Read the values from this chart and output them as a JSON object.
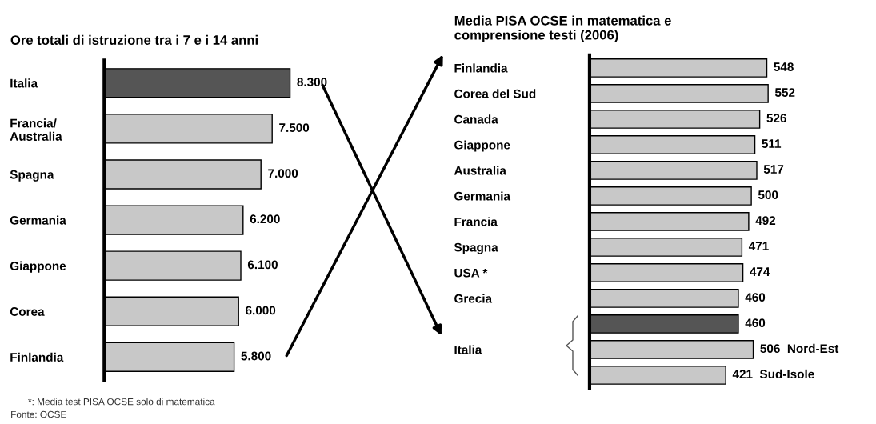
{
  "chart_data": [
    {
      "type": "bar",
      "orientation": "horizontal",
      "title": "Ore totali di istruzione tra i 7 e i 14 anni",
      "categories": [
        "Italia",
        "Francia/\nAustralia",
        "Spagna",
        "Germania",
        "Giappone",
        "Corea",
        "Finlandia"
      ],
      "values": [
        8300,
        7500,
        7000,
        6200,
        6100,
        6000,
        5800
      ],
      "colors": [
        "#555555",
        "#c8c8c8",
        "#c8c8c8",
        "#c8c8c8",
        "#c8c8c8",
        "#c8c8c8",
        "#c8c8c8"
      ],
      "value_labels": [
        "8.300",
        "7.500",
        "7.000",
        "6.200",
        "6.100",
        "6.000",
        "5.800"
      ],
      "tick_labels": "y",
      "grid": false,
      "legend": false,
      "annotations": [
        "*: Media test PISA OCSE solo di matematica",
        "Fonte: OCSE"
      ]
    },
    {
      "type": "bar",
      "orientation": "horizontal",
      "title": "Media PISA OCSE in matematica e\ncomprensione testi (2006)",
      "categories": [
        "Finlandia",
        "Corea del Sud",
        "Canada",
        "Giappone",
        "Australia",
        "Germania",
        "Francia",
        "Spagna",
        "USA *",
        "Grecia",
        null,
        "Italia",
        null
      ],
      "values": [
        548,
        552,
        526,
        511,
        517,
        500,
        492,
        471,
        474,
        460,
        460,
        506,
        421
      ],
      "colors": [
        "#c8c8c8",
        "#c8c8c8",
        "#c8c8c8",
        "#c8c8c8",
        "#c8c8c8",
        "#c8c8c8",
        "#c8c8c8",
        "#c8c8c8",
        "#c8c8c8",
        "#c8c8c8",
        "#555555",
        "#c8c8c8",
        "#c8c8c8"
      ],
      "value_labels": [
        "548",
        "552",
        "526",
        "511",
        "517",
        "500",
        "492",
        "471",
        "474",
        "460",
        "460",
        "506  Nord-Est",
        "421  Sud-Isole"
      ],
      "tick_labels": "y",
      "grid": false,
      "legend": false
    }
  ]
}
